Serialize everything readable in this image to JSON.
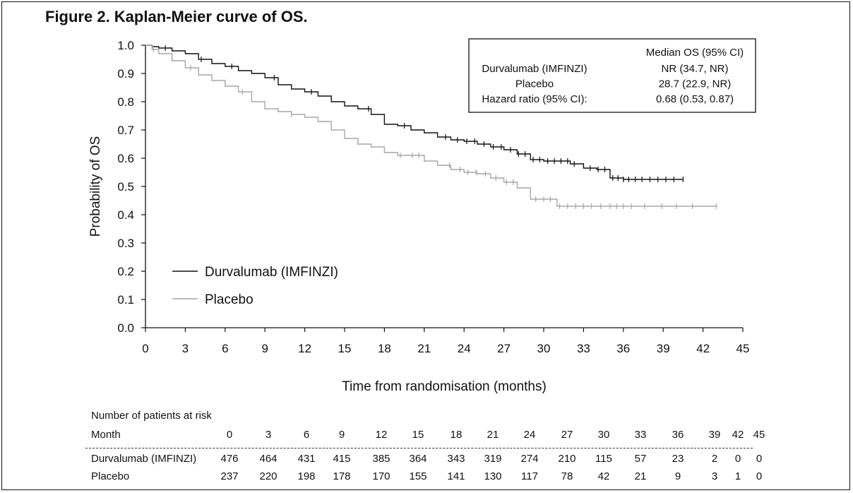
{
  "figure_title": "Figure 2. Kaplan-Meier curve of OS.",
  "colors": {
    "durvalumab": "#111111",
    "placebo": "#a6a6a6"
  },
  "chart_data": {
    "type": "line",
    "title": "",
    "xlabel": "Time from randomisation (months)",
    "ylabel": "Probability of OS",
    "xlim": [
      0,
      45
    ],
    "ylim": [
      0.0,
      1.0
    ],
    "x_ticks": [
      "0",
      "3",
      "6",
      "9",
      "12",
      "15",
      "18",
      "21",
      "24",
      "27",
      "30",
      "33",
      "36",
      "39",
      "42",
      "45"
    ],
    "y_ticks": [
      "0.0",
      "0.1",
      "0.2",
      "0.3",
      "0.4",
      "0.5",
      "0.6",
      "0.7",
      "0.8",
      "0.9",
      "1.0"
    ],
    "legend_position": "lower-left",
    "series": [
      {
        "name": "Durvalumab (IMFINZI)",
        "color": "#111111",
        "step_points": [
          [
            0,
            1.0
          ],
          [
            0.5,
            0.995
          ],
          [
            1,
            0.99
          ],
          [
            2,
            0.98
          ],
          [
            3,
            0.97
          ],
          [
            4,
            0.95
          ],
          [
            5,
            0.935
          ],
          [
            6,
            0.925
          ],
          [
            7,
            0.91
          ],
          [
            8,
            0.9
          ],
          [
            9,
            0.885
          ],
          [
            10,
            0.86
          ],
          [
            11,
            0.845
          ],
          [
            12,
            0.835
          ],
          [
            13,
            0.82
          ],
          [
            14,
            0.8
          ],
          [
            15,
            0.785
          ],
          [
            16,
            0.775
          ],
          [
            17,
            0.755
          ],
          [
            18,
            0.72
          ],
          [
            19,
            0.715
          ],
          [
            20,
            0.7
          ],
          [
            21,
            0.69
          ],
          [
            22,
            0.675
          ],
          [
            23,
            0.665
          ],
          [
            24,
            0.66
          ],
          [
            25,
            0.65
          ],
          [
            26,
            0.64
          ],
          [
            27,
            0.63
          ],
          [
            28,
            0.615
          ],
          [
            29,
            0.595
          ],
          [
            30,
            0.59
          ],
          [
            31,
            0.59
          ],
          [
            32,
            0.58
          ],
          [
            33,
            0.565
          ],
          [
            34,
            0.56
          ],
          [
            35,
            0.53
          ],
          [
            36,
            0.525
          ],
          [
            40.5,
            0.525
          ]
        ],
        "censor_x": [
          1.5,
          4.2,
          6.5,
          9.7,
          12.5,
          16.8,
          19.5,
          22.6,
          23.5,
          24.2,
          24.8,
          25.5,
          26.2,
          26.8,
          27.5,
          28.1,
          28.6,
          29.2,
          29.7,
          30.3,
          30.8,
          31.3,
          31.8,
          32.3,
          33.5,
          34.1,
          34.6,
          35.2,
          35.6,
          36.0,
          36.4,
          36.9,
          37.4,
          38.0,
          38.6,
          39.2,
          39.8,
          40.5
        ]
      },
      {
        "name": "Placebo",
        "color": "#a6a6a6",
        "step_points": [
          [
            0,
            1.0
          ],
          [
            0.5,
            0.985
          ],
          [
            1,
            0.97
          ],
          [
            2,
            0.945
          ],
          [
            3,
            0.92
          ],
          [
            4,
            0.895
          ],
          [
            5,
            0.875
          ],
          [
            6,
            0.855
          ],
          [
            7,
            0.835
          ],
          [
            8,
            0.8
          ],
          [
            9,
            0.775
          ],
          [
            10,
            0.765
          ],
          [
            11,
            0.755
          ],
          [
            12,
            0.745
          ],
          [
            13,
            0.73
          ],
          [
            14,
            0.7
          ],
          [
            15,
            0.67
          ],
          [
            16,
            0.65
          ],
          [
            17,
            0.64
          ],
          [
            18,
            0.62
          ],
          [
            19,
            0.61
          ],
          [
            20,
            0.61
          ],
          [
            21,
            0.59
          ],
          [
            22,
            0.575
          ],
          [
            23,
            0.56
          ],
          [
            24,
            0.55
          ],
          [
            25,
            0.545
          ],
          [
            26,
            0.53
          ],
          [
            27,
            0.515
          ],
          [
            28,
            0.495
          ],
          [
            29,
            0.455
          ],
          [
            30,
            0.455
          ],
          [
            31,
            0.43
          ],
          [
            43,
            0.43
          ]
        ],
        "censor_x": [
          0.6,
          3.4,
          7.3,
          11.0,
          19.2,
          20.1,
          20.6,
          22.9,
          23.7,
          24.3,
          24.9,
          25.6,
          26.4,
          27.2,
          27.7,
          29.4,
          30.0,
          30.5,
          31.2,
          31.8,
          32.4,
          33.0,
          33.6,
          34.3,
          35.0,
          35.5,
          36.0,
          36.6,
          37.6,
          38.9,
          40.0,
          41.2,
          43.0
        ]
      }
    ],
    "annotation_table": {
      "header": "Median OS (95% CI)",
      "rows": [
        {
          "label": "Durvalumab (IMFINZI)",
          "value": "NR (34.7, NR)"
        },
        {
          "label": "Placebo",
          "value": "28.7 (22.9, NR)"
        },
        {
          "label": "Hazard ratio (95% CI):",
          "value": "0.68 (0.53, 0.87)"
        }
      ]
    }
  },
  "risk_table": {
    "title": "Number of patients at risk",
    "month_label": "Month",
    "months": [
      "0",
      "3",
      "6",
      "9",
      "12",
      "15",
      "18",
      "21",
      "24",
      "27",
      "30",
      "33",
      "36",
      "39",
      "42",
      "45"
    ],
    "rows": [
      {
        "label": "Durvalumab (IMFINZI)",
        "values": [
          "476",
          "464",
          "431",
          "415",
          "385",
          "364",
          "343",
          "319",
          "274",
          "210",
          "115",
          "57",
          "23",
          "2",
          "0",
          "0"
        ]
      },
      {
        "label": "Placebo",
        "values": [
          "237",
          "220",
          "198",
          "178",
          "170",
          "155",
          "141",
          "130",
          "117",
          "78",
          "42",
          "21",
          "9",
          "3",
          "1",
          "0"
        ]
      }
    ]
  }
}
